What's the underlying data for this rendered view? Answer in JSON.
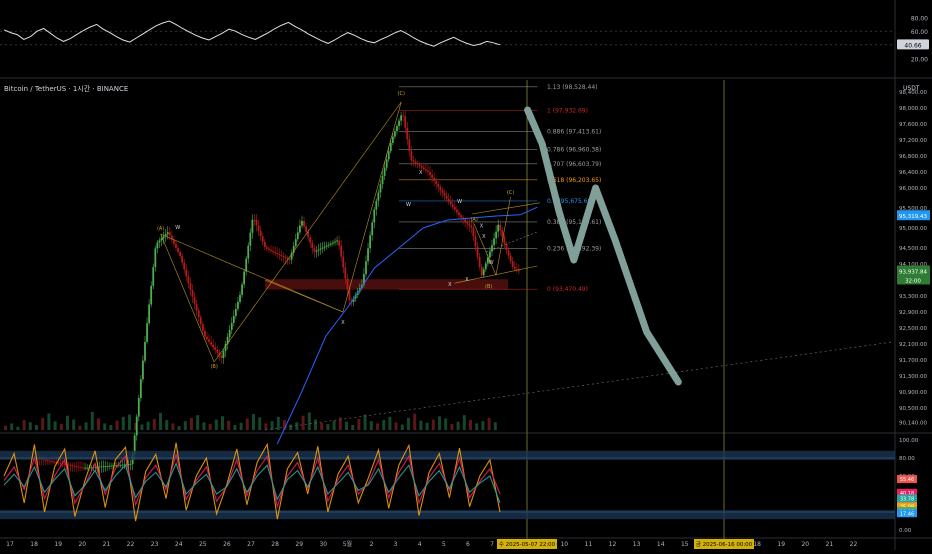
{
  "header": {
    "symbol_title": "Bitcoin / TetherUS · 1시간 · BINANCE",
    "currency": "USDT"
  },
  "colors": {
    "background": "#000000",
    "up": "#26a69a",
    "down": "#ef5350",
    "candle_up": "#4caf50",
    "candle_down": "#b71c1c",
    "ma": "#2962ff",
    "wave": "#c9a227",
    "forecast": "#7f9f98",
    "fib_gray": "#9e9e9e",
    "fib_red": "#c62828",
    "fib_orange": "#f59e0b",
    "fib_blue": "#2196f3",
    "support_zone": "#5a1010"
  },
  "chart_data": [
    {
      "type": "line",
      "title": "Bitcoin / TetherUS · 1시간 · BINANCE",
      "currency": "USDT",
      "x_ticks": [
        "17",
        "18",
        "19",
        "20",
        "21",
        "22",
        "23",
        "24",
        "25",
        "26",
        "27",
        "28",
        "29",
        "30",
        "5월",
        "2",
        "3",
        "4",
        "5",
        "6",
        "7",
        "8",
        "9",
        "10",
        "11",
        "12",
        "13",
        "14",
        "15",
        "16",
        "17",
        "18",
        "19",
        "20",
        "21",
        "22"
      ],
      "y_ticks": [
        "98,400.00",
        "98,000.00",
        "97,600.00",
        "97,200.00",
        "96,800.00",
        "96,400.00",
        "96,000.00",
        "95,500.00",
        "95,000.00",
        "94,500.00",
        "94,100.00",
        "93,700.00",
        "93,300.00",
        "92,900.00",
        "92,500.00",
        "92,100.00",
        "91,700.00",
        "91,300.00",
        "90,900.00",
        "90,500.00",
        "90,140.00"
      ],
      "price_badges": [
        {
          "label": "95,319.43",
          "color": "#2196f3"
        },
        {
          "label": "93,937.84",
          "color": "#4caf50"
        },
        {
          "label": "32:00",
          "color": "#4caf50"
        }
      ],
      "price_series": [
        {
          "t": 1,
          "v": 89250
        },
        {
          "t": 3,
          "v": 89000
        },
        {
          "t": 5,
          "v": 89100
        },
        {
          "t": 6,
          "v": 94600
        },
        {
          "t": 6.5,
          "v": 94900
        },
        {
          "t": 7,
          "v": 94300
        },
        {
          "t": 8,
          "v": 92300
        },
        {
          "t": 8.7,
          "v": 91750
        },
        {
          "t": 9.5,
          "v": 93400
        },
        {
          "t": 10,
          "v": 95300
        },
        {
          "t": 10.5,
          "v": 94500
        },
        {
          "t": 11.5,
          "v": 94200
        },
        {
          "t": 12,
          "v": 95200
        },
        {
          "t": 12.5,
          "v": 94400
        },
        {
          "t": 13.5,
          "v": 94700
        },
        {
          "t": 14,
          "v": 93100
        },
        {
          "t": 14.5,
          "v": 93600
        },
        {
          "t": 15,
          "v": 95500
        },
        {
          "t": 15.7,
          "v": 97200
        },
        {
          "t": 16.15,
          "v": 97900
        },
        {
          "t": 16.5,
          "v": 96700
        },
        {
          "t": 17.2,
          "v": 96400
        },
        {
          "t": 18,
          "v": 95700
        },
        {
          "t": 18.5,
          "v": 95300
        },
        {
          "t": 19,
          "v": 95000
        },
        {
          "t": 19.4,
          "v": 93800
        },
        {
          "t": 19.8,
          "v": 94500
        },
        {
          "t": 20.1,
          "v": 95100
        },
        {
          "t": 20.4,
          "v": 94500
        },
        {
          "t": 20.7,
          "v": 94000
        },
        {
          "t": 21,
          "v": 93900
        }
      ],
      "moving_average": [
        {
          "t": 11,
          "v": 89600
        },
        {
          "t": 12,
          "v": 90900
        },
        {
          "t": 13,
          "v": 92300
        },
        {
          "t": 14,
          "v": 93100
        },
        {
          "t": 15,
          "v": 94000
        },
        {
          "t": 16,
          "v": 94500
        },
        {
          "t": 17,
          "v": 95000
        },
        {
          "t": 18,
          "v": 95200
        },
        {
          "t": 19,
          "v": 95250
        },
        {
          "t": 20,
          "v": 95300
        },
        {
          "t": 21,
          "v": 95330
        }
      ],
      "fibonacci": [
        {
          "ratio": "1.13",
          "value": "98,528.44",
          "label": "1.13 (98,528.44)",
          "v": 98528.44,
          "color": "#9e9e9e"
        },
        {
          "ratio": "1",
          "value": "97,932.69",
          "label": "1 (97,932.69)",
          "v": 97932.69,
          "color": "#c62828"
        },
        {
          "ratio": "0.886",
          "value": "97,413.61",
          "label": "0.886 (97,413.61)",
          "v": 97413.61,
          "color": "#9e9e9e"
        },
        {
          "ratio": "0.786",
          "value": "96,960.38",
          "label": "0.786 (96,960.38)",
          "v": 96960.38,
          "color": "#9e9e9e"
        },
        {
          "ratio": "0.707",
          "value": "96,603.79",
          "label": "0.707 (96,603.79)",
          "v": 96603.79,
          "color": "#9e9e9e"
        },
        {
          "ratio": "0.618",
          "value": "96,203.65",
          "label": "0.618 (96,203.65)",
          "v": 96203.65,
          "color": "#f59e0b"
        },
        {
          "ratio": "0.5",
          "value": "95,675.68",
          "label": "0.5 (95,675.68)",
          "v": 95675.68,
          "color": "#2196f3"
        },
        {
          "ratio": "0.382",
          "value": "95,150.61",
          "label": "0.382 (95,150.61)",
          "v": 95150.61,
          "color": "#9e9e9e"
        },
        {
          "ratio": "0.236",
          "value": "94,492.39",
          "label": "0.236 (94,492.39)",
          "v": 94492.39,
          "color": "#9e9e9e"
        },
        {
          "ratio": "0",
          "value": "93,470.49",
          "label": "0 (93,470.49)",
          "v": 93470.49,
          "color": "#c62828"
        }
      ],
      "wave_labels": [
        {
          "text": "(A)",
          "t": 6.2,
          "v": 94950
        },
        {
          "text": "W",
          "t": 6.9,
          "v": 94980
        },
        {
          "text": "(B)",
          "t": 8.4,
          "v": 91500
        },
        {
          "text": "(C)",
          "t": 16.1,
          "v": 98320
        },
        {
          "text": "X",
          "t": 13.7,
          "v": 92600
        },
        {
          "text": "X",
          "t": 16.9,
          "v": 96350
        },
        {
          "text": "W",
          "t": 16.4,
          "v": 95550
        },
        {
          "text": "(A)",
          "t": 19.1,
          "v": 95180
        },
        {
          "text": "W",
          "t": 18.5,
          "v": 95620
        },
        {
          "text": "X",
          "t": 19.4,
          "v": 95010
        },
        {
          "text": "X",
          "t": 18.1,
          "v": 93550
        },
        {
          "text": "X",
          "t": 18.8,
          "v": 93680
        },
        {
          "text": "X",
          "t": 19.5,
          "v": 94750
        },
        {
          "text": "W",
          "t": 19.8,
          "v": 94100
        },
        {
          "text": "(B)",
          "t": 19.7,
          "v": 93500
        },
        {
          "text": "(C)",
          "t": 20.6,
          "v": 95850
        }
      ],
      "forecast_path": [
        {
          "t": 21.3,
          "v": 97950
        },
        {
          "t": 21.9,
          "v": 97100
        },
        {
          "t": 22.6,
          "v": 95400
        },
        {
          "t": 23.2,
          "v": 94200
        },
        {
          "t": 24.1,
          "v": 96000
        },
        {
          "t": 24.9,
          "v": 94700
        },
        {
          "t": 26.2,
          "v": 92400
        },
        {
          "t": 27.5,
          "v": 91150
        }
      ],
      "volume": [
        8,
        12,
        6,
        18,
        14,
        9,
        22,
        30,
        16,
        11,
        26,
        19,
        8,
        14,
        33,
        21,
        12,
        9,
        17,
        24,
        28,
        13,
        10,
        15,
        20,
        31,
        18,
        12,
        7,
        16,
        22,
        27,
        14,
        11,
        19,
        25,
        17,
        9,
        13,
        21,
        29,
        23,
        12,
        16,
        24,
        18,
        10,
        14,
        26,
        32,
        19,
        13,
        11,
        17,
        23,
        15,
        9,
        20,
        28,
        16,
        12,
        18,
        24,
        14,
        10,
        22,
        30,
        17,
        13,
        19,
        25,
        21,
        11,
        15,
        27,
        18,
        12,
        16,
        22,
        14
      ]
    },
    {
      "type": "line",
      "y_ticks": [
        "80.00",
        "60.00",
        "40.00",
        "20.00"
      ],
      "current_value": "40.66",
      "values": [
        62,
        58,
        55,
        48,
        52,
        60,
        64,
        57,
        50,
        45,
        49,
        55,
        61,
        66,
        70,
        63,
        58,
        52,
        47,
        44,
        50,
        56,
        62,
        68,
        72,
        75,
        70,
        64,
        59,
        54,
        50,
        47,
        52,
        57,
        63,
        60,
        55,
        51,
        48,
        53,
        58,
        64,
        69,
        73,
        67,
        62,
        56,
        51,
        46,
        42,
        47,
        53,
        58,
        54,
        49,
        45,
        43,
        48,
        52,
        57,
        61,
        56,
        50,
        45,
        41,
        38,
        43,
        47,
        51,
        46,
        42,
        39,
        41,
        45,
        43,
        40
      ]
    },
    {
      "type": "line",
      "y_ticks": [
        "100.00",
        "80.00",
        "60.00",
        "40.00",
        "20.00",
        "0.00"
      ],
      "current_values": [
        {
          "label": "55.46",
          "color": "#ef5350"
        },
        {
          "label": "40.18",
          "color": "#e91e63"
        },
        {
          "label": "33.78",
          "color": "#26a69a"
        },
        {
          "label": "25.09",
          "color": "#f59e0b"
        },
        {
          "label": "20.08",
          "color": "#4caf50"
        },
        {
          "label": "17.46",
          "color": "#2196f3"
        }
      ],
      "series": [
        {
          "color": "#f59e0b",
          "values": [
            60,
            85,
            30,
            95,
            20,
            70,
            90,
            15,
            55,
            88,
            25,
            78,
            92,
            10,
            65,
            84,
            35,
            97,
            22,
            60,
            80,
            18,
            50,
            90,
            28,
            75,
            95,
            12,
            68,
            86,
            40,
            93,
            20,
            62,
            82,
            30,
            58,
            89,
            24,
            72,
            94,
            16,
            64,
            85,
            36,
            91,
            26,
            60,
            78,
            20
          ]
        },
        {
          "color": "#e91e63",
          "values": [
            55,
            70,
            45,
            80,
            35,
            60,
            78,
            30,
            50,
            74,
            40,
            68,
            82,
            28,
            58,
            72,
            45,
            84,
            34,
            55,
            70,
            32,
            48,
            78,
            38,
            66,
            82,
            26,
            60,
            75,
            46,
            80,
            32,
            56,
            72,
            40,
            52,
            78,
            36,
            64,
            82,
            30,
            58,
            74,
            44,
            80,
            36,
            54,
            68,
            40
          ]
        },
        {
          "color": "#26a69a",
          "values": [
            50,
            62,
            48,
            70,
            42,
            56,
            68,
            38,
            50,
            66,
            44,
            60,
            72,
            36,
            54,
            64,
            48,
            74,
            40,
            52,
            62,
            40,
            48,
            68,
            42,
            60,
            72,
            34,
            56,
            66,
            48,
            70,
            40,
            52,
            64,
            44,
            50,
            68,
            42,
            58,
            72,
            38,
            54,
            66,
            46,
            70,
            42,
            52,
            60,
            30
          ]
        }
      ]
    }
  ],
  "x_axis_badges": {
    "left": "수 2025-05-07  22:00",
    "right": "금 2025-06-16  00:00"
  }
}
